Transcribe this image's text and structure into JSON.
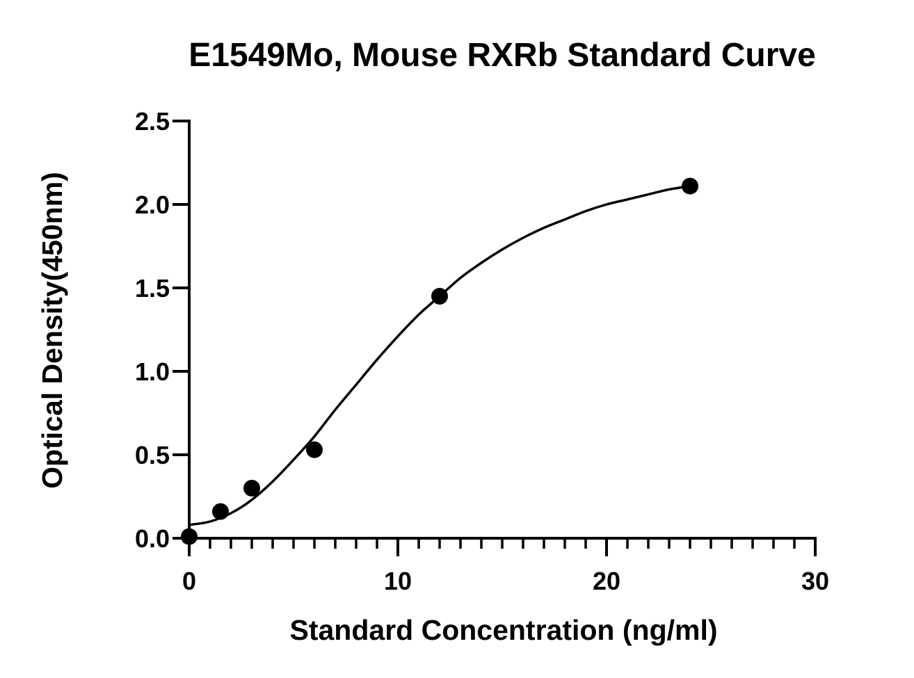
{
  "chart_data": {
    "type": "scatter",
    "title": "E1549Mo, Mouse RXRb Standard Curve",
    "xlabel": "Standard Concentration (ng/ml)",
    "ylabel": "Optical Density(450nm)",
    "xlim": [
      0,
      30
    ],
    "ylim": [
      0,
      2.5
    ],
    "x_ticks": [
      0,
      10,
      20,
      30
    ],
    "x_tick_labels": [
      "0",
      "10",
      "20",
      "30"
    ],
    "x_minor_step": 1,
    "y_ticks": [
      0,
      0.5,
      1.0,
      1.5,
      2.0,
      2.5
    ],
    "y_tick_labels": [
      "0.0",
      "0.5",
      "1.0",
      "1.5",
      "2.0",
      "2.5"
    ],
    "grid": false,
    "legend": false,
    "series": [
      {
        "x": [
          0,
          1.5,
          3,
          6,
          12,
          24
        ],
        "y": [
          0.01,
          0.16,
          0.3,
          0.53,
          1.45,
          2.11
        ]
      }
    ],
    "fit_curve": {
      "type": "4PL",
      "x": [
        0,
        1,
        2,
        3,
        4,
        5,
        6,
        7,
        8,
        9,
        10,
        11,
        12,
        13,
        14,
        15,
        16,
        17,
        18,
        19,
        20,
        21,
        22,
        23,
        24
      ],
      "y": [
        0.08,
        0.1,
        0.15,
        0.23,
        0.34,
        0.47,
        0.61,
        0.77,
        0.92,
        1.07,
        1.21,
        1.34,
        1.45,
        1.56,
        1.65,
        1.73,
        1.8,
        1.86,
        1.91,
        1.96,
        2.0,
        2.03,
        2.06,
        2.09,
        2.11
      ]
    }
  }
}
